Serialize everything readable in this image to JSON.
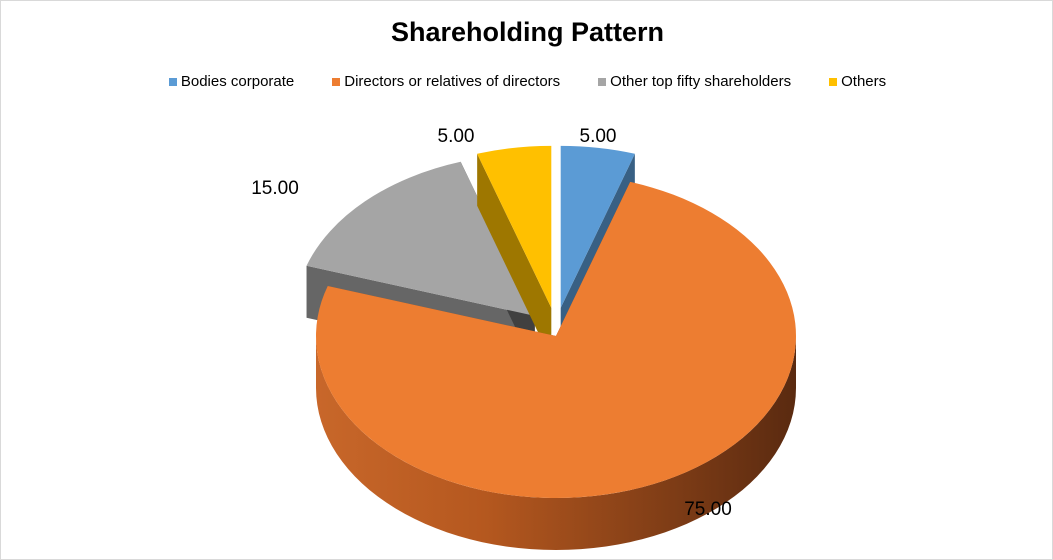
{
  "chart_data": {
    "type": "pie",
    "title": "Shareholding Pattern",
    "legend_position": "top",
    "series": [
      {
        "name": "Bodies corporate",
        "value": 5.0,
        "label": "5.00",
        "color": "#5B9BD5",
        "exploded": true
      },
      {
        "name": "Directors or relatives of directors",
        "value": 75.0,
        "label": "75.00",
        "color": "#ED7D31",
        "exploded": false
      },
      {
        "name": "Other top fifty shareholders",
        "value": 15.0,
        "label": "15.00",
        "color": "#A5A5A5",
        "exploded": true
      },
      {
        "name": "Others",
        "value": 5.0,
        "label": "5.00",
        "color": "#FFC000",
        "exploded": true
      }
    ]
  }
}
